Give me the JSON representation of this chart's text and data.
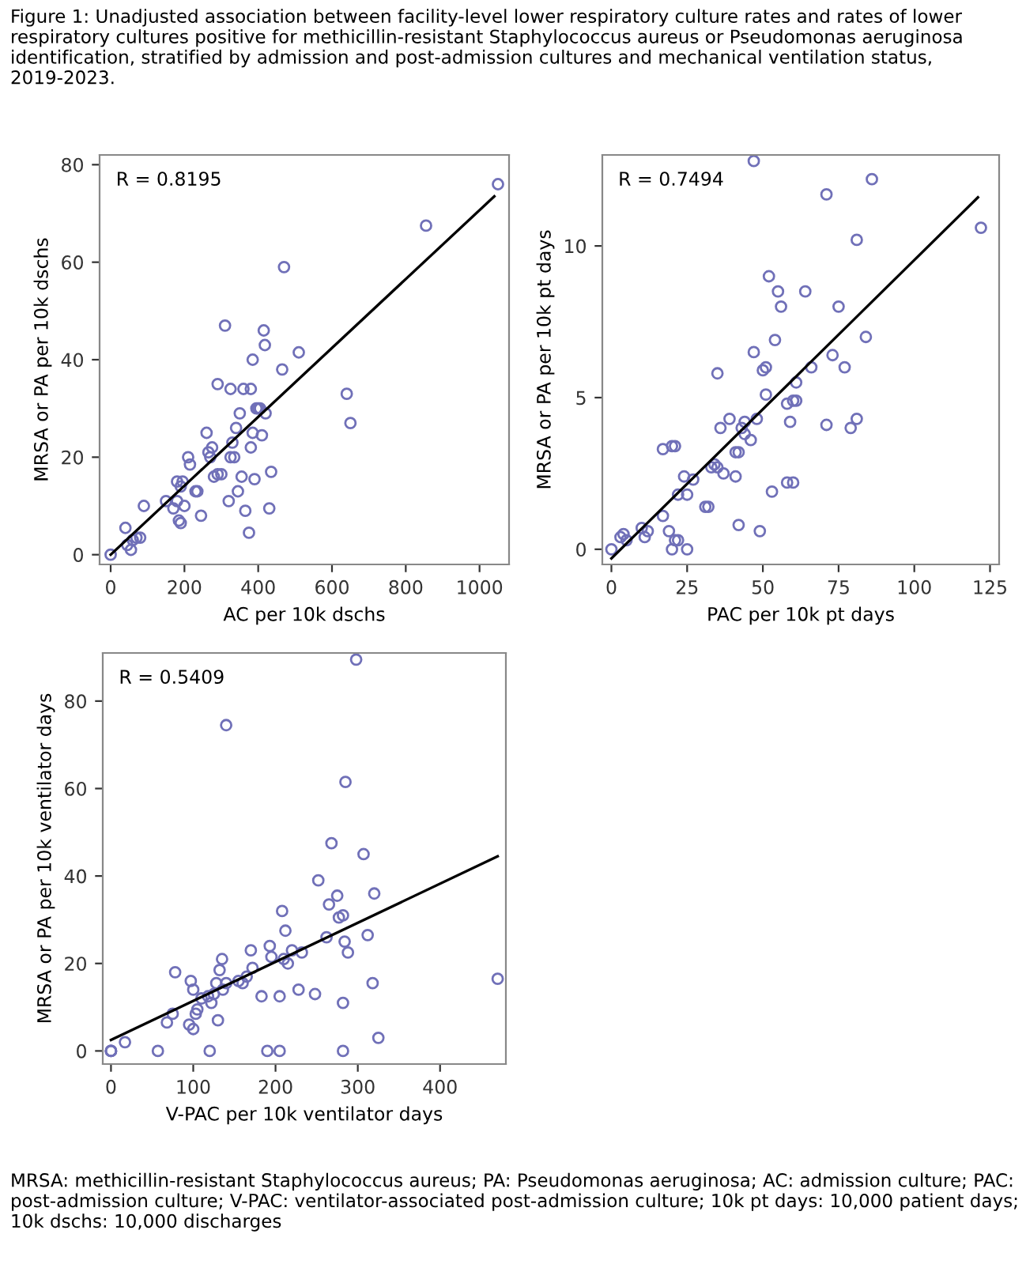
{
  "chart_data": [
    {
      "type": "scatter",
      "title": "Figure 1: Unadjusted association between facility-level lower respiratory culture rates and rates of lower respiratory cultures positive for methicillin-resistant Staphylococcus aureus or Pseudomonas aeruginosa identification, stratified by admission and post-admission cultures and mechanical ventilation status, 2019-2023.",
      "xlabel": "AC per 10k dschs",
      "ylabel": "MRSA or PA per 10k dschs",
      "annotations": [
        "R = 0.8195"
      ],
      "xlim": [
        -30,
        1080
      ],
      "ylim": [
        -2,
        82
      ],
      "xticks": [
        0,
        200,
        400,
        600,
        800,
        1000
      ],
      "yticks": [
        0,
        20,
        40,
        60,
        80
      ],
      "grid": false,
      "series": [
        {
          "marker": "circle",
          "color": "#7070b8",
          "x": [
            0,
            40,
            45,
            55,
            60,
            70,
            80,
            90,
            150,
            170,
            180,
            185,
            190,
            180,
            190,
            195,
            200,
            210,
            215,
            230,
            235,
            245,
            260,
            265,
            270,
            275,
            280,
            290,
            290,
            300,
            310,
            320,
            325,
            325,
            330,
            335,
            340,
            345,
            350,
            355,
            360,
            365,
            375,
            380,
            380,
            385,
            385,
            390,
            395,
            400,
            405,
            410,
            415,
            418,
            420,
            430,
            435,
            465,
            470,
            510,
            640,
            650,
            855,
            1050
          ],
          "values": [
            0,
            5.5,
            2,
            1,
            3,
            3.5,
            3.5,
            10,
            11,
            9.5,
            11,
            7,
            6.5,
            15,
            14,
            15,
            10,
            20,
            18.5,
            13,
            13,
            8,
            25,
            21,
            20,
            22,
            16,
            16.5,
            35,
            16.5,
            47,
            11,
            20,
            34,
            23,
            20,
            26,
            13,
            29,
            16,
            34,
            9,
            4.5,
            34,
            22,
            25,
            40,
            15.5,
            30,
            30,
            30,
            24.5,
            46,
            43,
            29,
            9.5,
            17,
            38,
            59,
            41.5,
            33,
            27,
            67.5,
            76
          ]
        },
        {
          "type": "line",
          "color": "#000000",
          "x": [
            0,
            1040
          ],
          "values": [
            0,
            73.5
          ]
        }
      ]
    },
    {
      "type": "scatter",
      "xlabel": "PAC per 10k pt days",
      "ylabel": "MRSA or PA per 10k pt days",
      "annotations": [
        "R = 0.7494"
      ],
      "xlim": [
        -3,
        128
      ],
      "ylim": [
        -0.5,
        13
      ],
      "xticks": [
        0,
        25,
        50,
        75,
        100,
        125
      ],
      "yticks": [
        0,
        5,
        10
      ],
      "grid": false,
      "series": [
        {
          "marker": "circle",
          "color": "#7070b8",
          "x": [
            0,
            3,
            4,
            5,
            10,
            11,
            12,
            17,
            17,
            19,
            20,
            20,
            21,
            21,
            22,
            22,
            24,
            25,
            25,
            27,
            31,
            32,
            33,
            34,
            35,
            35,
            36,
            37,
            39,
            41,
            41,
            42,
            42,
            43,
            44,
            44,
            46,
            47,
            48,
            49,
            50,
            51,
            51,
            52,
            53,
            54,
            55,
            56,
            58,
            58,
            59,
            60,
            60,
            61,
            61,
            64,
            66,
            71,
            71,
            73,
            75,
            77,
            79,
            81,
            81,
            84,
            86,
            47,
            122
          ],
          "values": [
            0,
            0.4,
            0.5,
            0.3,
            0.7,
            0.4,
            0.6,
            1.1,
            3.3,
            0.6,
            3.4,
            0,
            3.4,
            0.3,
            0.3,
            1.8,
            2.4,
            1.8,
            0,
            2.3,
            1.4,
            1.4,
            2.7,
            2.8,
            2.7,
            5.8,
            4,
            2.5,
            4.3,
            2.4,
            3.2,
            3.2,
            0.8,
            4,
            4.2,
            3.8,
            3.6,
            6.5,
            4.3,
            0.6,
            5.9,
            6,
            5.1,
            9,
            1.9,
            6.9,
            8.5,
            8,
            4.8,
            2.2,
            4.2,
            2.2,
            4.9,
            4.9,
            5.5,
            8.5,
            6,
            11.7,
            4.1,
            6.4,
            8,
            6,
            4,
            4.3,
            10.2,
            7,
            12.2,
            12.8,
            10.6
          ]
        },
        {
          "type": "line",
          "color": "#000000",
          "x": [
            0,
            121
          ],
          "values": [
            -0.3,
            11.6
          ]
        }
      ]
    },
    {
      "type": "scatter",
      "xlabel": "V-PAC per 10k ventilator days",
      "ylabel": "MRSA or PA per 10k ventilator days",
      "annotations": [
        "R = 0.5409",
        "MRSA: methicillin-resistant Staphylococcus aureus; PA: Pseudomonas aeruginosa; AC: admission culture; PAC: post-admission culture; V-PAC: ventilator-associated post-admission culture; 10k pt days: 10,000 patient days; 10k dschs: 10,000 discharges"
      ],
      "xlim": [
        -10,
        480
      ],
      "ylim": [
        -3,
        91
      ],
      "xticks": [
        0,
        100,
        200,
        300,
        400
      ],
      "yticks": [
        0,
        20,
        40,
        60,
        80
      ],
      "grid": false,
      "series": [
        {
          "marker": "circle",
          "color": "#7070b8",
          "x": [
            0,
            0,
            0,
            17,
            57,
            68,
            75,
            78,
            95,
            97,
            100,
            100,
            103,
            105,
            110,
            118,
            120,
            122,
            125,
            128,
            130,
            132,
            135,
            136,
            140,
            140,
            155,
            160,
            165,
            170,
            172,
            183,
            190,
            193,
            195,
            205,
            205,
            208,
            210,
            212,
            215,
            220,
            228,
            232,
            248,
            252,
            262,
            265,
            268,
            275,
            277,
            282,
            282,
            282,
            284,
            285,
            288,
            298,
            307,
            312,
            318,
            320,
            325,
            470
          ],
          "values": [
            0,
            0,
            0,
            2,
            0,
            6.5,
            8.5,
            18,
            6,
            16,
            5,
            14,
            8.5,
            9.5,
            12,
            12.5,
            0,
            11,
            13,
            15.5,
            7,
            18.5,
            21,
            14,
            74.5,
            15.5,
            16,
            15.5,
            17,
            23,
            19,
            12.5,
            0,
            24,
            21.5,
            0,
            12.5,
            32,
            21,
            27.5,
            20,
            23,
            14,
            22.5,
            13,
            39,
            26,
            33.5,
            47.5,
            35.5,
            30.5,
            31,
            11,
            0,
            25,
            61.5,
            22.5,
            89.5,
            45,
            26.5,
            15.5,
            36,
            3,
            16.5
          ]
        },
        {
          "type": "line",
          "color": "#000000",
          "x": [
            0,
            470
          ],
          "values": [
            2.5,
            44.5
          ]
        }
      ]
    }
  ]
}
